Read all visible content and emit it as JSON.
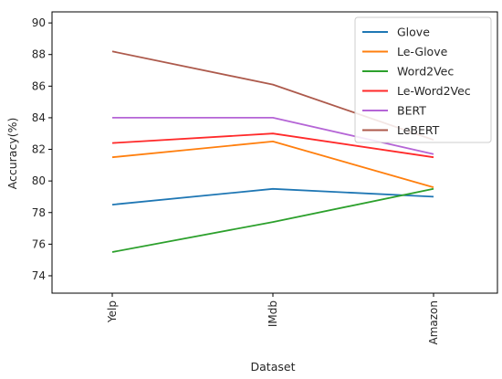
{
  "chart_data": {
    "type": "line",
    "title": "",
    "xlabel": "Dataset",
    "ylabel": "Accuracy(%)",
    "categories": [
      "Yelp",
      "IMdb",
      "Amazon"
    ],
    "ylim": [
      72.9,
      90.7
    ],
    "yticks": [
      74,
      76,
      78,
      80,
      82,
      84,
      86,
      88,
      90
    ],
    "grid": false,
    "legend_position": "top-right",
    "series": [
      {
        "name": "Glove",
        "color": "#1f77b4",
        "values": [
          78.5,
          79.5,
          79.0
        ]
      },
      {
        "name": "Le-Glove",
        "color": "#ff7f0e",
        "values": [
          81.5,
          82.5,
          79.6
        ]
      },
      {
        "name": "Word2Vec",
        "color": "#2ca02c",
        "values": [
          75.5,
          77.4,
          79.5
        ]
      },
      {
        "name": "Le-Word2Vec",
        "color": "#ff2a2a",
        "values": [
          82.4,
          83.0,
          81.5
        ]
      },
      {
        "name": "BERT",
        "color": "#b565d6",
        "values": [
          84.0,
          84.0,
          81.7
        ]
      },
      {
        "name": "LeBERT",
        "color": "#ad5a4c",
        "values": [
          88.2,
          86.1,
          82.6
        ]
      }
    ]
  }
}
